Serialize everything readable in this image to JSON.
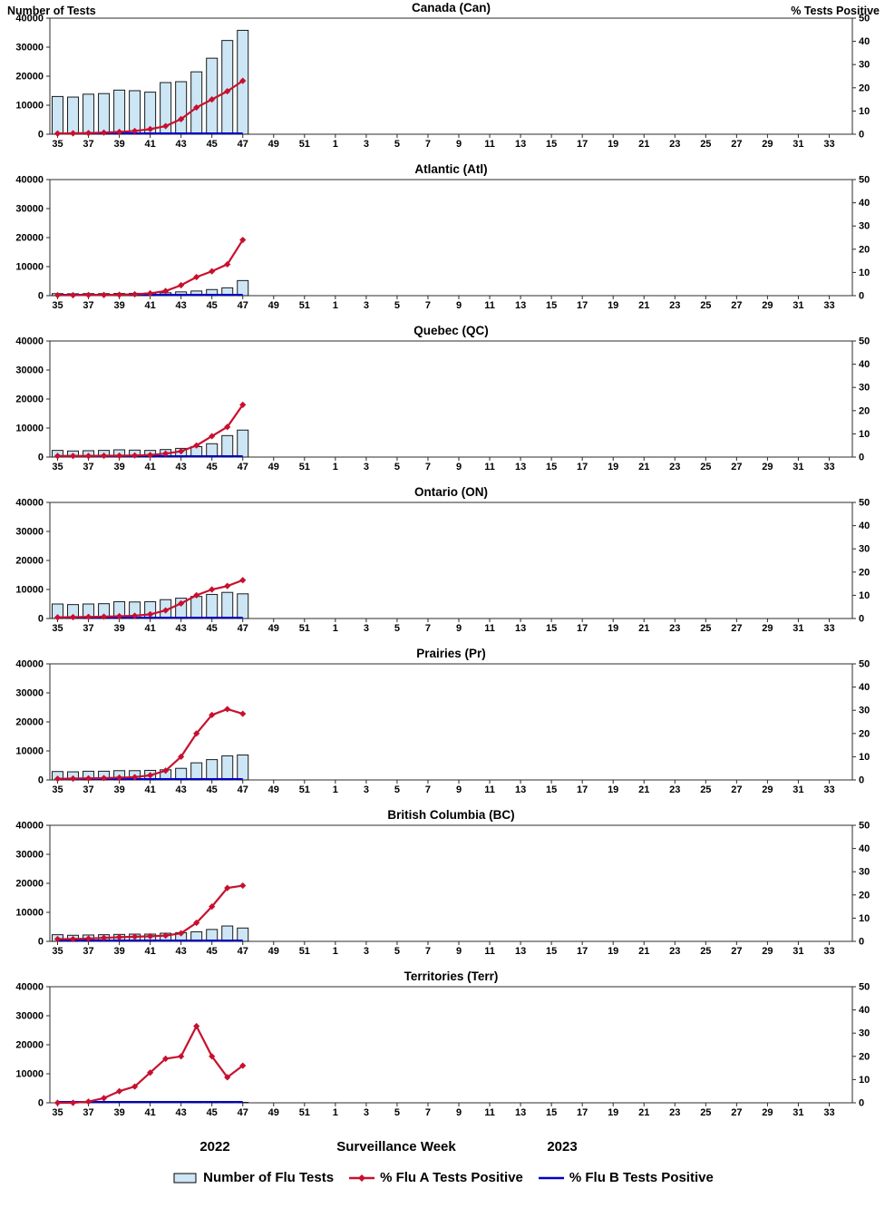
{
  "header": {
    "left_axis_title": "Number of Tests",
    "right_axis_title": "% Tests Positive"
  },
  "footer": {
    "year_left": "2022",
    "axis_label": "Surveillance Week",
    "year_right": "2023"
  },
  "legend": {
    "items": [
      {
        "label": "Number of Flu Tests",
        "swatch": "bar",
        "color": "#CDE6F5",
        "border": "#000000"
      },
      {
        "label": "% Flu A Tests Positive",
        "swatch": "line-diamond",
        "color": "#C8102E"
      },
      {
        "label": "% Flu B Tests Positive",
        "swatch": "line",
        "color": "#0000CC"
      }
    ]
  },
  "x_axis": {
    "tick_labels": [
      "35",
      "37",
      "39",
      "41",
      "43",
      "45",
      "47",
      "49",
      "51",
      "1",
      "3",
      "5",
      "7",
      "9",
      "11",
      "13",
      "15",
      "17",
      "19",
      "21",
      "23",
      "25",
      "27",
      "29",
      "31",
      "33"
    ]
  },
  "chart_data": [
    {
      "type": "bar+line",
      "title": "Canada (Can)",
      "xlabel": "Surveillance Week",
      "ylabel_left": "Number of Tests",
      "ylabel_right": "% Tests Positive",
      "left_ylim": [
        0,
        40000
      ],
      "right_ylim": [
        0,
        50
      ],
      "left_ticks": [
        0,
        10000,
        20000,
        30000,
        40000
      ],
      "right_ticks": [
        0,
        10,
        20,
        30,
        40,
        50
      ],
      "weeks": [
        35,
        36,
        37,
        38,
        39,
        40,
        41,
        42,
        43,
        44,
        45,
        46,
        47
      ],
      "series": [
        {
          "name": "Number of Flu Tests",
          "axis": "left",
          "values": [
            13000,
            12800,
            13800,
            14000,
            15200,
            15000,
            14500,
            17800,
            18100,
            21500,
            26200,
            32300,
            35800
          ]
        },
        {
          "name": "% Flu A Tests Positive",
          "axis": "right",
          "values": [
            0.3,
            0.4,
            0.5,
            0.7,
            1.0,
            1.4,
            2.2,
            3.5,
            6.5,
            11.5,
            15.0,
            18.5,
            23.0
          ]
        },
        {
          "name": "% Flu B Tests Positive",
          "axis": "right",
          "values": [
            0,
            0,
            0,
            0,
            0,
            0,
            0,
            0,
            0,
            0,
            0,
            0,
            0
          ]
        }
      ]
    },
    {
      "type": "bar+line",
      "title": "Atlantic (Atl)",
      "left_ylim": [
        0,
        40000
      ],
      "right_ylim": [
        0,
        50
      ],
      "left_ticks": [
        0,
        10000,
        20000,
        30000,
        40000
      ],
      "right_ticks": [
        0,
        10,
        20,
        30,
        40,
        50
      ],
      "weeks": [
        35,
        36,
        37,
        38,
        39,
        40,
        41,
        42,
        43,
        44,
        45,
        46,
        47
      ],
      "series": [
        {
          "name": "Number of Flu Tests",
          "axis": "left",
          "values": [
            700,
            650,
            700,
            700,
            750,
            800,
            900,
            1000,
            1300,
            1600,
            2100,
            2700,
            5200
          ]
        },
        {
          "name": "% Flu A Tests Positive",
          "axis": "right",
          "values": [
            0.2,
            0.2,
            0.3,
            0.3,
            0.4,
            0.6,
            1.0,
            2.0,
            4.5,
            8.0,
            10.5,
            13.5,
            24.0
          ]
        },
        {
          "name": "% Flu B Tests Positive",
          "axis": "right",
          "values": [
            0,
            0,
            0,
            0,
            0,
            0,
            0,
            0,
            0,
            0,
            0,
            0,
            0
          ]
        }
      ]
    },
    {
      "type": "bar+line",
      "title": "Quebec (QC)",
      "left_ylim": [
        0,
        40000
      ],
      "right_ylim": [
        0,
        50
      ],
      "left_ticks": [
        0,
        10000,
        20000,
        30000,
        40000
      ],
      "right_ticks": [
        0,
        10,
        20,
        30,
        40,
        50
      ],
      "weeks": [
        35,
        36,
        37,
        38,
        39,
        40,
        41,
        42,
        43,
        44,
        45,
        46,
        47
      ],
      "series": [
        {
          "name": "Number of Flu Tests",
          "axis": "left",
          "values": [
            2300,
            2100,
            2200,
            2300,
            2500,
            2400,
            2300,
            2600,
            3000,
            3600,
            4600,
            7400,
            9300
          ]
        },
        {
          "name": "% Flu A Tests Positive",
          "axis": "right",
          "values": [
            0.5,
            0.5,
            0.5,
            0.6,
            0.6,
            0.7,
            0.9,
            1.5,
            2.5,
            5.0,
            9.0,
            13.0,
            22.5
          ]
        },
        {
          "name": "% Flu B Tests Positive",
          "axis": "right",
          "values": [
            0,
            0,
            0,
            0,
            0,
            0,
            0,
            0,
            0,
            0,
            0,
            0,
            0
          ]
        }
      ]
    },
    {
      "type": "bar+line",
      "title": "Ontario (ON)",
      "left_ylim": [
        0,
        40000
      ],
      "right_ylim": [
        0,
        50
      ],
      "left_ticks": [
        0,
        10000,
        20000,
        30000,
        40000
      ],
      "right_ticks": [
        0,
        10,
        20,
        30,
        40,
        50
      ],
      "weeks": [
        35,
        36,
        37,
        38,
        39,
        40,
        41,
        42,
        43,
        44,
        45,
        46,
        47
      ],
      "series": [
        {
          "name": "Number of Flu Tests",
          "axis": "left",
          "values": [
            5000,
            4800,
            5000,
            5100,
            5800,
            5700,
            5800,
            6500,
            7000,
            7600,
            8300,
            9000,
            8500
          ]
        },
        {
          "name": "% Flu A Tests Positive",
          "axis": "right",
          "values": [
            0.5,
            0.6,
            0.7,
            0.8,
            1.0,
            1.2,
            1.8,
            3.5,
            6.5,
            10.0,
            12.5,
            14.0,
            16.5
          ]
        },
        {
          "name": "% Flu B Tests Positive",
          "axis": "right",
          "values": [
            0,
            0,
            0,
            0,
            0,
            0,
            0,
            0,
            0,
            0,
            0,
            0,
            0
          ]
        }
      ]
    },
    {
      "type": "bar+line",
      "title": "Prairies (Pr)",
      "left_ylim": [
        0,
        40000
      ],
      "right_ylim": [
        0,
        50
      ],
      "left_ticks": [
        0,
        10000,
        20000,
        30000,
        40000
      ],
      "right_ticks": [
        0,
        10,
        20,
        30,
        40,
        50
      ],
      "weeks": [
        35,
        36,
        37,
        38,
        39,
        40,
        41,
        42,
        43,
        44,
        45,
        46,
        47
      ],
      "series": [
        {
          "name": "Number of Flu Tests",
          "axis": "left",
          "values": [
            2900,
            2800,
            3000,
            3000,
            3200,
            3200,
            3300,
            3500,
            4000,
            5900,
            7000,
            8300,
            8600
          ]
        },
        {
          "name": "% Flu A Tests Positive",
          "axis": "right",
          "values": [
            0.5,
            0.6,
            0.7,
            0.8,
            1.0,
            1.2,
            2.0,
            4.0,
            10.0,
            20.0,
            28.0,
            30.5,
            28.5
          ]
        },
        {
          "name": "% Flu B Tests Positive",
          "axis": "right",
          "values": [
            0,
            0,
            0,
            0,
            0,
            0,
            0,
            0,
            0,
            0,
            0,
            0,
            0
          ]
        }
      ]
    },
    {
      "type": "bar+line",
      "title": "British Columbia (BC)",
      "left_ylim": [
        0,
        40000
      ],
      "right_ylim": [
        0,
        50
      ],
      "left_ticks": [
        0,
        10000,
        20000,
        30000,
        40000
      ],
      "right_ticks": [
        0,
        10,
        20,
        30,
        40,
        50
      ],
      "weeks": [
        35,
        36,
        37,
        38,
        39,
        40,
        41,
        42,
        43,
        44,
        45,
        46,
        47
      ],
      "series": [
        {
          "name": "Number of Flu Tests",
          "axis": "left",
          "values": [
            2300,
            2100,
            2200,
            2300,
            2400,
            2500,
            2500,
            2800,
            3000,
            3300,
            4100,
            5300,
            4600
          ]
        },
        {
          "name": "% Flu A Tests Positive",
          "axis": "right",
          "values": [
            1.0,
            1.0,
            1.2,
            1.5,
            1.8,
            2.0,
            2.2,
            2.5,
            3.5,
            8.0,
            15.0,
            23.0,
            24.0
          ]
        },
        {
          "name": "% Flu B Tests Positive",
          "axis": "right",
          "values": [
            0,
            0,
            0,
            0,
            0,
            0,
            0,
            0,
            0,
            0,
            0,
            0,
            0
          ]
        }
      ]
    },
    {
      "type": "bar+line",
      "title": "Territories (Terr)",
      "left_ylim": [
        0,
        40000
      ],
      "right_ylim": [
        0,
        50
      ],
      "left_ticks": [
        0,
        10000,
        20000,
        30000,
        40000
      ],
      "right_ticks": [
        0,
        10,
        20,
        30,
        40,
        50
      ],
      "weeks": [
        35,
        36,
        37,
        38,
        39,
        40,
        41,
        42,
        43,
        44,
        45,
        46,
        47
      ],
      "series": [
        {
          "name": "Number of Flu Tests",
          "axis": "left",
          "values": [
            30,
            20,
            30,
            30,
            40,
            40,
            50,
            60,
            80,
            100,
            120,
            150,
            150
          ]
        },
        {
          "name": "% Flu A Tests Positive",
          "axis": "right",
          "values": [
            0,
            0,
            0.5,
            2.0,
            5.0,
            7.0,
            13.0,
            19.0,
            20.0,
            33.0,
            20.0,
            11.0,
            16.0
          ]
        },
        {
          "name": "% Flu B Tests Positive",
          "axis": "right",
          "values": [
            0,
            0,
            0,
            0,
            0,
            0,
            0,
            0,
            0,
            0,
            0,
            0,
            0
          ]
        }
      ]
    }
  ]
}
